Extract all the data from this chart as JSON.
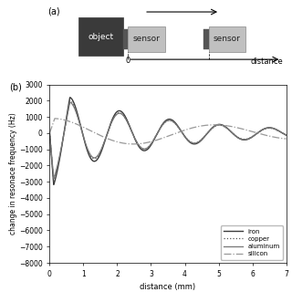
{
  "title_a": "(a)",
  "title_b": "(b)",
  "xlabel": "distance (mm)",
  "ylabel": "change in resonace frequency (Hz)",
  "xlim": [
    0,
    7
  ],
  "ylim": [
    -8000,
    3000
  ],
  "yticks": [
    -8000,
    -7000,
    -6000,
    -5000,
    -4000,
    -3000,
    -2000,
    -1000,
    0,
    1000,
    2000,
    3000
  ],
  "xticks": [
    0,
    1,
    2,
    3,
    4,
    5,
    6,
    7
  ],
  "legend_entries": [
    "iron",
    "copper",
    "aluminum",
    "silicon"
  ],
  "iron_color": "#3a3a3a",
  "copper_color": "#5a5a5a",
  "aluminum_color": "#7a7a7a",
  "silicon_color": "#aaaaaa"
}
